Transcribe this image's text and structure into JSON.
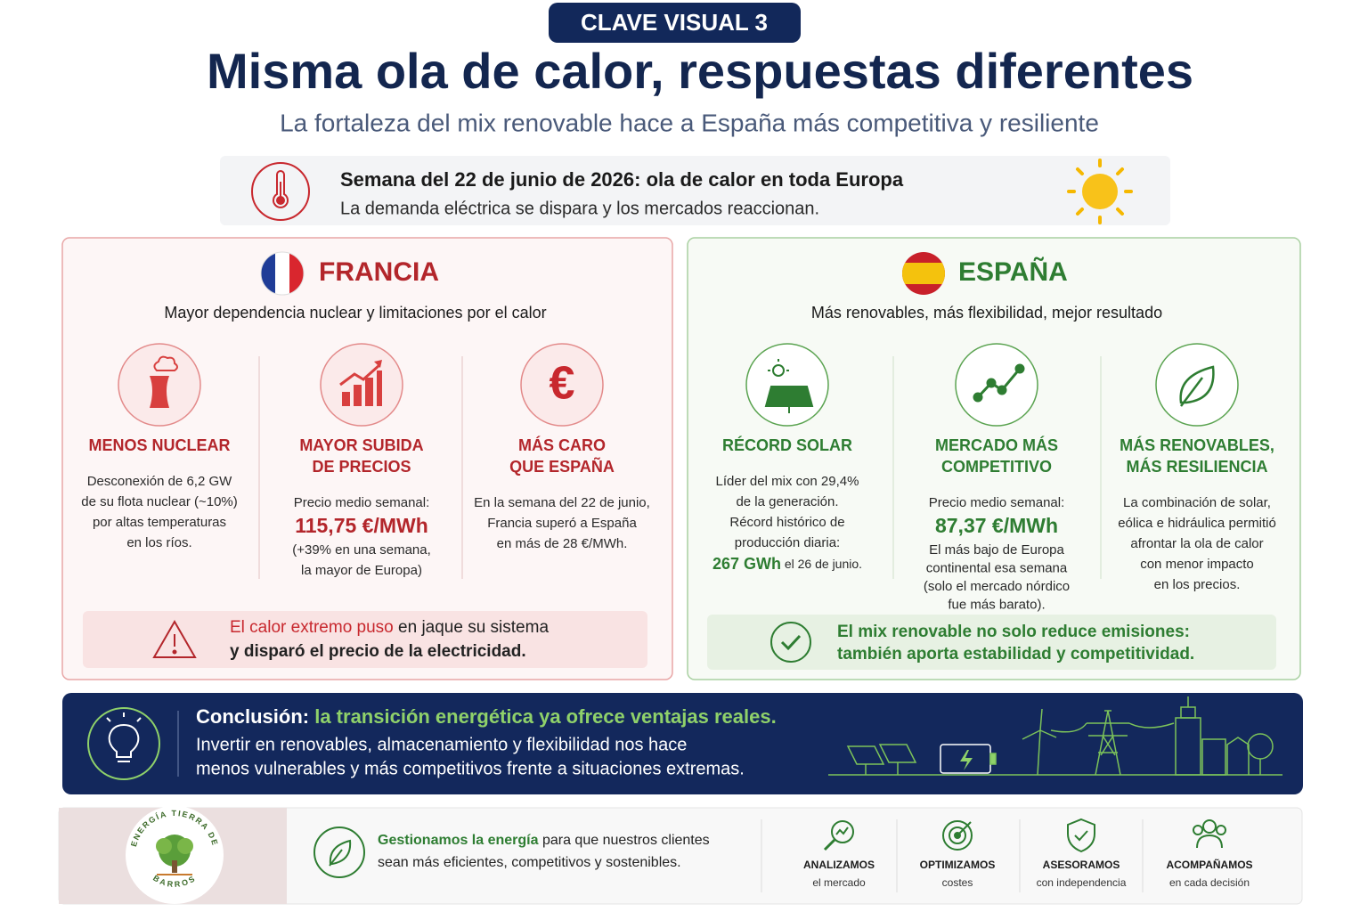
{
  "header": {
    "badge": "CLAVE VISUAL 3",
    "title": "Misma ola de calor, respuestas diferentes",
    "subtitle": "La fortaleza del mix renovable hace a España más competitiva y resiliente"
  },
  "banner": {
    "title": "Semana del 22 de junio de 2026: ola de calor en toda Europa",
    "text": "La demanda eléctrica se dispara y los mercados reaccionan."
  },
  "france": {
    "name": "FRANCIA",
    "subtitle": "Mayor dependencia nuclear y limitaciones por el calor",
    "items": [
      {
        "title": [
          "MENOS NUCLEAR"
        ],
        "lines": [
          "Desconexión de 6,2 GW",
          "de su flota nuclear (~10%)",
          "por altas temperaturas",
          "en los ríos."
        ]
      },
      {
        "title": [
          "MAYOR SUBIDA",
          "DE PRECIOS"
        ],
        "lines": [
          "Precio medio semanal:"
        ],
        "highlight": "115,75 €/MWh",
        "notes": [
          "(+39% en una semana,",
          "la mayor de Europa)"
        ]
      },
      {
        "title": [
          "MÁS CARO",
          "QUE ESPAÑA"
        ],
        "lines": [
          "En la semana del 22 de junio,",
          "Francia superó a España",
          "en más de 28 €/MWh."
        ]
      }
    ],
    "alert": {
      "highlight": "El calor extremo puso",
      "text": " en jaque su sistema",
      "line2": "y disparó el precio de la electricidad."
    }
  },
  "spain": {
    "name": "ESPAÑA",
    "subtitle": "Más renovables, más flexibilidad, mejor resultado",
    "items": [
      {
        "title": [
          "RÉCORD SOLAR"
        ],
        "lines": [
          "Líder del mix con 29,4%",
          "de la generación.",
          "Récord histórico de",
          "producción diaria:"
        ],
        "highlight": "267 GWh",
        "highlight_note": " el 26 de junio."
      },
      {
        "title": [
          "MERCADO MÁS",
          "COMPETITIVO"
        ],
        "lines": [
          "Precio medio semanal:"
        ],
        "highlight": "87,37 €/MWh",
        "notes": [
          "El más bajo de Europa",
          "continental esa semana",
          "(solo el mercado nórdico",
          "fue más barato)."
        ]
      },
      {
        "title": [
          "MÁS RENOVABLES,",
          "MÁS RESILIENCIA"
        ],
        "lines": [
          "La combinación de solar,",
          "eólica e hidráulica permitió",
          "afrontar la ola de calor",
          "con menor impacto",
          "en los precios."
        ]
      }
    ],
    "message": [
      "El mix renovable no solo reduce emisiones:",
      "también aporta estabilidad y competitividad."
    ]
  },
  "conclusion": {
    "label": "Conclusión:",
    "highlight": " la transición energética ya ofrece ventajas reales.",
    "lines": [
      "Invertir en renovables, almacenamiento y flexibilidad nos hace",
      "menos vulnerables y más competitivos frente a situaciones extremas."
    ]
  },
  "footer": {
    "logo": {
      "top": "ENERGÍA TIERRA DE",
      "bottom": "BARROS"
    },
    "highlight": "Gestionamos la energía",
    "text": " para que nuestros clientes",
    "line2": "sean más eficientes, competitivos y sostenibles.",
    "services": [
      {
        "title": "ANALIZAMOS",
        "text": "el mercado"
      },
      {
        "title": "OPTIMIZAMOS",
        "text": "costes"
      },
      {
        "title": "ASESORAMOS",
        "text": "con independencia"
      },
      {
        "title": "ACOMPAÑAMOS",
        "text": "en cada decisión"
      }
    ]
  }
}
